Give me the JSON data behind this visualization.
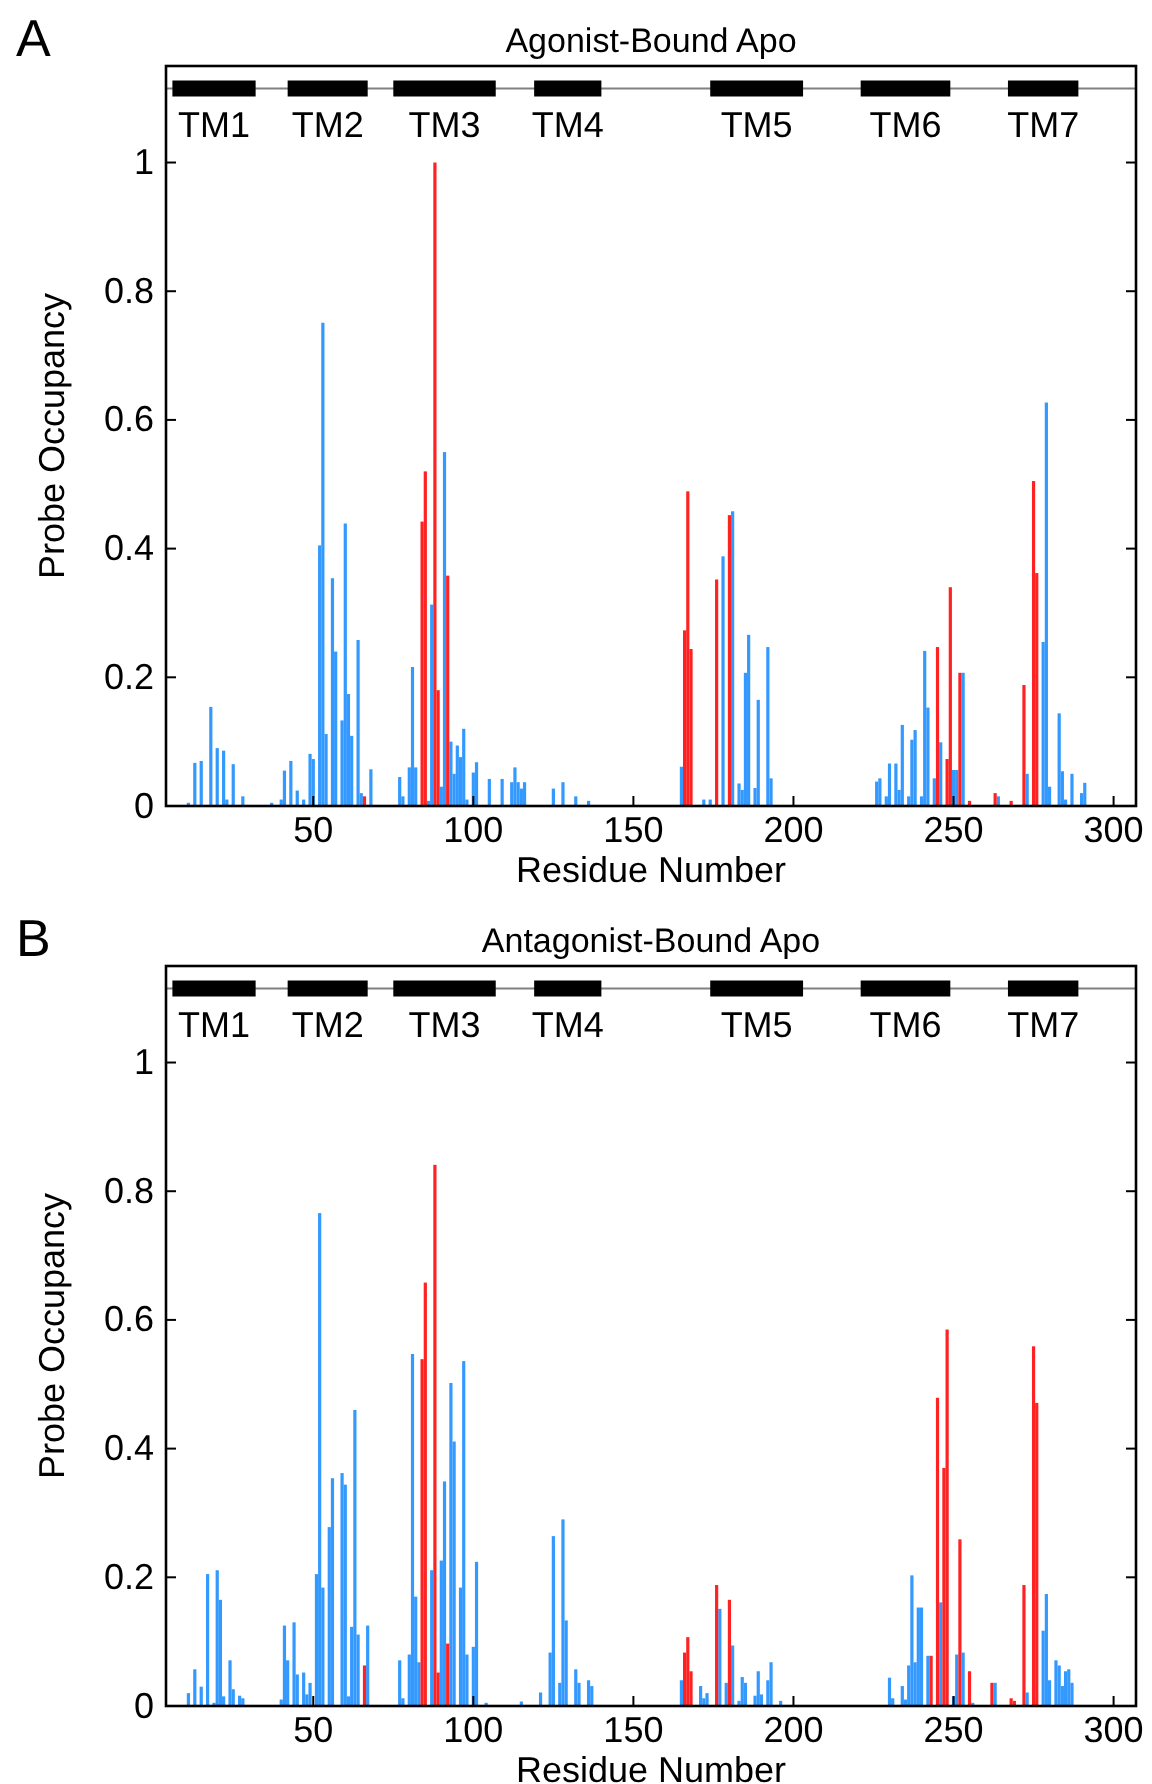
{
  "chart_data": [
    {
      "type": "bar",
      "title": "Agonist-Bound Apo",
      "xlabel": "Residue Number",
      "ylabel": "Probe Occupancy",
      "annotations": [
        "A"
      ],
      "xlim": [
        4,
        307
      ],
      "ylim": [
        0,
        1.15
      ],
      "xticks": [
        50,
        100,
        150,
        200,
        250,
        300
      ],
      "yticks": [
        0,
        0.2,
        0.4,
        0.6,
        0.8,
        1
      ],
      "ref_lines": [
        {
          "axis": "y",
          "value": 1.115,
          "color": "#808080"
        }
      ],
      "series": [
        {
          "color": "#3399ff",
          "x": [
            11,
            13,
            15,
            18,
            20,
            22,
            23,
            25,
            28,
            37,
            40,
            41,
            43,
            45,
            47,
            49,
            50,
            52,
            53,
            54,
            56,
            57,
            59,
            60,
            61,
            62,
            64,
            65,
            68,
            77,
            78,
            80,
            81,
            82,
            86,
            87,
            90,
            91,
            93,
            94,
            95,
            96,
            97,
            98,
            100,
            101,
            105,
            109,
            112,
            113,
            114,
            115,
            116,
            125,
            128,
            132,
            136,
            165,
            172,
            174,
            178,
            181,
            183,
            184,
            185,
            186,
            188,
            189,
            192,
            193,
            226,
            227,
            229,
            230,
            232,
            233,
            234,
            236,
            237,
            238,
            240,
            241,
            242,
            244,
            246,
            250,
            251,
            253,
            264,
            273,
            278,
            279,
            280,
            283,
            284,
            285,
            287,
            290,
            291
          ],
          "values": [
            0.005,
            0.067,
            0.07,
            0.154,
            0.09,
            0.086,
            0.01,
            0.065,
            0.015,
            0.005,
            0.01,
            0.055,
            0.07,
            0.024,
            0.01,
            0.081,
            0.073,
            0.405,
            0.751,
            0.112,
            0.354,
            0.24,
            0.133,
            0.439,
            0.174,
            0.109,
            0.258,
            0.02,
            0.057,
            0.045,
            0.015,
            0.06,
            0.216,
            0.06,
            0.008,
            0.313,
            0.03,
            0.55,
            0.1,
            0.05,
            0.094,
            0.076,
            0.12,
            0.01,
            0.052,
            0.068,
            0.042,
            0.042,
            0.037,
            0.06,
            0.037,
            0.027,
            0.037,
            0.027,
            0.037,
            0.015,
            0.008,
            0.061,
            0.01,
            0.01,
            0.388,
            0.458,
            0.035,
            0.025,
            0.207,
            0.266,
            0.028,
            0.165,
            0.247,
            0.043,
            0.038,
            0.043,
            0.015,
            0.066,
            0.066,
            0.025,
            0.126,
            0.015,
            0.103,
            0.118,
            0.015,
            0.241,
            0.153,
            0.043,
            0.099,
            0.056,
            0.056,
            0.207,
            0.015,
            0.05,
            0.255,
            0.627,
            0.03,
            0.144,
            0.054,
            0.01,
            0.05,
            0.02,
            0.036
          ]
        },
        {
          "color": "#ff2222",
          "x": [
            66,
            84,
            85,
            88,
            89,
            92,
            166,
            167,
            168,
            176,
            180,
            245,
            248,
            249,
            252,
            255,
            263,
            268,
            272,
            275,
            276
          ],
          "values": [
            0.015,
            0.442,
            0.52,
            1.0,
            0.18,
            0.358,
            0.273,
            0.489,
            0.244,
            0.352,
            0.452,
            0.247,
            0.073,
            0.34,
            0.207,
            0.008,
            0.02,
            0.008,
            0.188,
            0.505,
            0.362
          ]
        },
        {
          "type": "line",
          "name": "TM1",
          "color": "#000000",
          "x": [
            6,
            32
          ],
          "values": [
            1.115,
            1.115
          ]
        },
        {
          "type": "line",
          "name": "TM2",
          "color": "#000000",
          "x": [
            42,
            67
          ],
          "values": [
            1.115,
            1.115
          ]
        },
        {
          "type": "line",
          "name": "TM3",
          "color": "#000000",
          "x": [
            75,
            107
          ],
          "values": [
            1.115,
            1.115
          ]
        },
        {
          "type": "line",
          "name": "TM4",
          "color": "#000000",
          "x": [
            119,
            140
          ],
          "values": [
            1.115,
            1.115
          ]
        },
        {
          "type": "line",
          "name": "TM5",
          "color": "#000000",
          "x": [
            174,
            203
          ],
          "values": [
            1.115,
            1.115
          ]
        },
        {
          "type": "line",
          "name": "TM6",
          "color": "#000000",
          "x": [
            221,
            249
          ],
          "values": [
            1.115,
            1.115
          ]
        },
        {
          "type": "line",
          "name": "TM7",
          "color": "#000000",
          "x": [
            267,
            289
          ],
          "values": [
            1.115,
            1.115
          ]
        }
      ]
    },
    {
      "type": "bar",
      "title": "Antagonist-Bound Apo",
      "xlabel": "Residue Number",
      "ylabel": "Probe Occupancy",
      "annotations": [
        "B"
      ],
      "xlim": [
        4,
        307
      ],
      "ylim": [
        0,
        1.15
      ],
      "xticks": [
        50,
        100,
        150,
        200,
        250,
        300
      ],
      "yticks": [
        0,
        0.2,
        0.4,
        0.6,
        0.8,
        1
      ],
      "ref_lines": [
        {
          "axis": "y",
          "value": 1.115,
          "color": "#808080"
        }
      ],
      "series": [
        {
          "color": "#3399ff",
          "x": [
            11,
            13,
            15,
            17,
            19,
            20,
            21,
            22,
            24,
            25,
            27,
            28,
            40,
            41,
            42,
            44,
            45,
            47,
            48,
            49,
            51,
            52,
            53,
            55,
            56,
            59,
            60,
            61,
            62,
            63,
            64,
            67,
            77,
            78,
            80,
            81,
            82,
            83,
            87,
            90,
            91,
            93,
            94,
            96,
            97,
            98,
            100,
            101,
            104,
            115,
            121,
            124,
            125,
            127,
            128,
            129,
            132,
            133,
            136,
            137,
            165,
            171,
            172,
            173,
            177,
            179,
            181,
            183,
            184,
            185,
            188,
            189,
            190,
            192,
            193,
            196,
            230,
            231,
            234,
            235,
            236,
            237,
            238,
            239,
            240,
            242,
            246,
            250,
            251,
            253,
            256,
            263,
            273,
            278,
            279,
            280,
            282,
            283,
            284,
            285,
            286,
            287
          ],
          "values": [
            0.02,
            0.057,
            0.03,
            0.205,
            0.005,
            0.211,
            0.165,
            0.015,
            0.071,
            0.026,
            0.016,
            0.012,
            0.01,
            0.125,
            0.071,
            0.13,
            0.049,
            0.052,
            0.018,
            0.036,
            0.205,
            0.766,
            0.184,
            0.278,
            0.354,
            0.362,
            0.344,
            0.015,
            0.123,
            0.46,
            0.111,
            0.125,
            0.071,
            0.012,
            0.08,
            0.547,
            0.17,
            0.068,
            0.211,
            0.226,
            0.349,
            0.502,
            0.411,
            0.184,
            0.536,
            0.08,
            0.092,
            0.224,
            0.005,
            0.007,
            0.021,
            0.083,
            0.264,
            0.036,
            0.29,
            0.133,
            0.057,
            0.036,
            0.04,
            0.031,
            0.04,
            0.031,
            0.012,
            0.02,
            0.151,
            0.036,
            0.094,
            0.008,
            0.045,
            0.036,
            0.016,
            0.054,
            0.018,
            0.04,
            0.068,
            0.008,
            0.044,
            0.012,
            0.031,
            0.01,
            0.063,
            0.203,
            0.068,
            0.153,
            0.153,
            0.078,
            0.161,
            0.015,
            0.08,
            0.083,
            0.005,
            0.036,
            0.021,
            0.117,
            0.174,
            0.04,
            0.071,
            0.063,
            0.031,
            0.054,
            0.057,
            0.036
          ]
        },
        {
          "color": "#ff2222",
          "x": [
            66,
            84,
            85,
            88,
            89,
            92,
            166,
            167,
            168,
            176,
            180,
            243,
            245,
            247,
            248,
            252,
            255,
            262,
            268,
            269,
            272,
            275,
            276
          ],
          "values": [
            0.063,
            0.539,
            0.658,
            0.841,
            0.052,
            0.097,
            0.083,
            0.107,
            0.054,
            0.188,
            0.165,
            0.078,
            0.479,
            0.37,
            0.585,
            0.259,
            0.054,
            0.036,
            0.012,
            0.008,
            0.188,
            0.559,
            0.471
          ]
        },
        {
          "type": "line",
          "name": "TM1",
          "color": "#000000",
          "x": [
            6,
            32
          ],
          "values": [
            1.115,
            1.115
          ]
        },
        {
          "type": "line",
          "name": "TM2",
          "color": "#000000",
          "x": [
            42,
            67
          ],
          "values": [
            1.115,
            1.115
          ]
        },
        {
          "type": "line",
          "name": "TM3",
          "color": "#000000",
          "x": [
            75,
            107
          ],
          "values": [
            1.115,
            1.115
          ]
        },
        {
          "type": "line",
          "name": "TM4",
          "color": "#000000",
          "x": [
            119,
            140
          ],
          "values": [
            1.115,
            1.115
          ]
        },
        {
          "type": "line",
          "name": "TM5",
          "color": "#000000",
          "x": [
            174,
            203
          ],
          "values": [
            1.115,
            1.115
          ]
        },
        {
          "type": "line",
          "name": "TM6",
          "color": "#000000",
          "x": [
            221,
            249
          ],
          "values": [
            1.115,
            1.115
          ]
        },
        {
          "type": "line",
          "name": "TM7",
          "color": "#000000",
          "x": [
            267,
            289
          ],
          "values": [
            1.115,
            1.115
          ]
        }
      ]
    }
  ]
}
